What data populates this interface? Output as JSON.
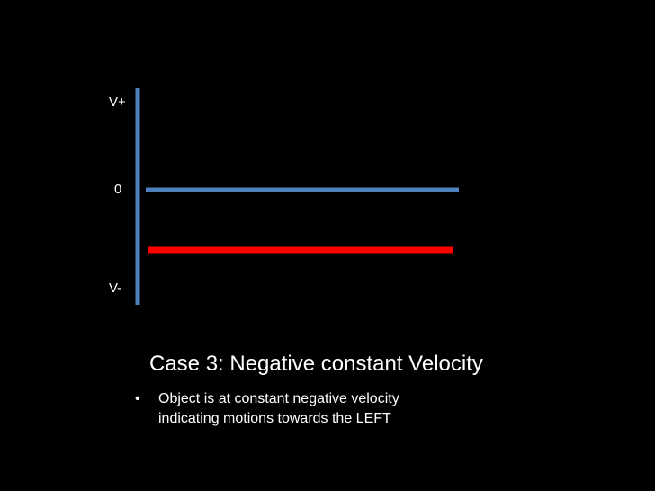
{
  "axis": {
    "top_label": "V+",
    "zero_label": "0",
    "bottom_label": "V-",
    "color": "#4f81bd"
  },
  "lines": {
    "zero_line_color": "#4f81bd",
    "velocity_line_color": "#ff0000"
  },
  "caption": {
    "title": "Case 3: Negative constant Velocity",
    "bullets": [
      {
        "mark": "•",
        "text": "Object is at constant negative velocity indicating motions towards the LEFT"
      }
    ]
  }
}
